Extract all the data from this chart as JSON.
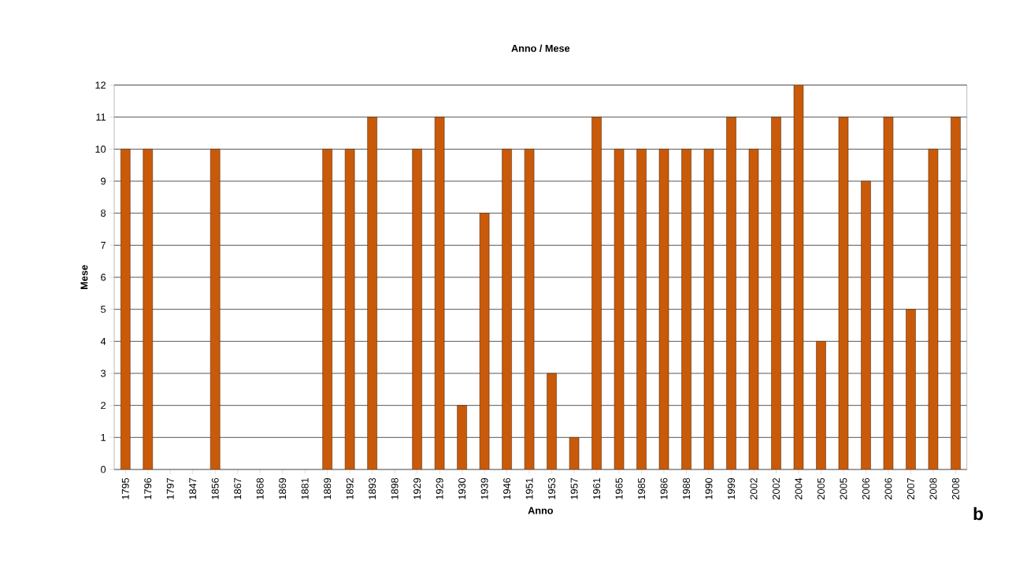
{
  "chart_data": {
    "type": "bar",
    "title": "Anno / Mese",
    "xlabel": "Anno",
    "ylabel": "Mese",
    "categories": [
      "1795",
      "1796",
      "1797",
      "1847",
      "1856",
      "1867",
      "1868",
      "1869",
      "1881",
      "1889",
      "1892",
      "1893",
      "1898",
      "1929",
      "1929",
      "1930",
      "1939",
      "1946",
      "1951",
      "1953",
      "1957",
      "1961",
      "1965",
      "1985",
      "1986",
      "1988",
      "1990",
      "1999",
      "2002",
      "2002",
      "2004",
      "2005",
      "2005",
      "2006",
      "2006",
      "2007",
      "2008",
      "2008"
    ],
    "values": [
      10,
      10,
      null,
      null,
      10,
      null,
      null,
      null,
      null,
      10,
      10,
      11,
      null,
      10,
      11,
      2,
      8,
      10,
      10,
      3,
      1,
      11,
      10,
      10,
      10,
      10,
      10,
      11,
      10,
      11,
      12,
      4,
      11,
      9,
      11,
      5,
      10,
      11
    ],
    "color": "#c85a0a",
    "ylim": [
      0,
      12
    ],
    "yticks": [
      0,
      1,
      2,
      3,
      4,
      5,
      6,
      7,
      8,
      9,
      10,
      11,
      12
    ],
    "grid": "y",
    "annotations": [
      "b"
    ]
  }
}
